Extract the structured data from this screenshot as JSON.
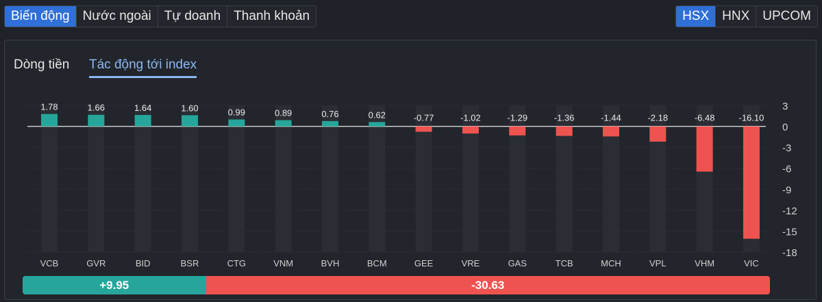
{
  "tabs": [
    "Biến động",
    "Nước ngoài",
    "Tự doanh",
    "Thanh khoản"
  ],
  "active_tab": 0,
  "exchanges": [
    "HSX",
    "HNX",
    "UPCOM"
  ],
  "active_exchange": 0,
  "subtabs": [
    "Dòng tiền",
    "Tác động tới index"
  ],
  "active_subtab": 1,
  "colors": {
    "positive": "#26a69a",
    "negative": "#ef5350",
    "accent": "#2f6fd6"
  },
  "chart_data": {
    "type": "bar",
    "title": "",
    "xlabel": "",
    "ylabel": "",
    "categories": [
      "VCB",
      "GVR",
      "BID",
      "BSR",
      "CTG",
      "VNM",
      "BVH",
      "BCM",
      "GEE",
      "VRE",
      "GAS",
      "TCB",
      "MCH",
      "VPL",
      "VHM",
      "VIC"
    ],
    "values": [
      1.78,
      1.66,
      1.64,
      1.6,
      0.99,
      0.89,
      0.76,
      0.62,
      -0.77,
      -1.02,
      -1.29,
      -1.36,
      -1.44,
      -2.18,
      -6.48,
      -16.1
    ],
    "value_labels": [
      "1.78",
      "1.66",
      "1.64",
      "1.60",
      "0.99",
      "0.89",
      "0.76",
      "0.62",
      "-0.77",
      "-1.02",
      "-1.29",
      "-1.36",
      "-1.44",
      "-2.18",
      "-6.48",
      "-16.10"
    ],
    "ylim": [
      -18,
      3
    ],
    "yticks": [
      3,
      0,
      -3,
      -6,
      -9,
      -12,
      -15,
      -18
    ],
    "ytick_labels": [
      "3",
      "0",
      "-3",
      "-6",
      "-9",
      "-12",
      "-15",
      "-18"
    ],
    "grid": true
  },
  "summary": {
    "positive": "+9.95",
    "negative": "-30.63",
    "positive_value": 9.95,
    "negative_value": 30.63
  }
}
